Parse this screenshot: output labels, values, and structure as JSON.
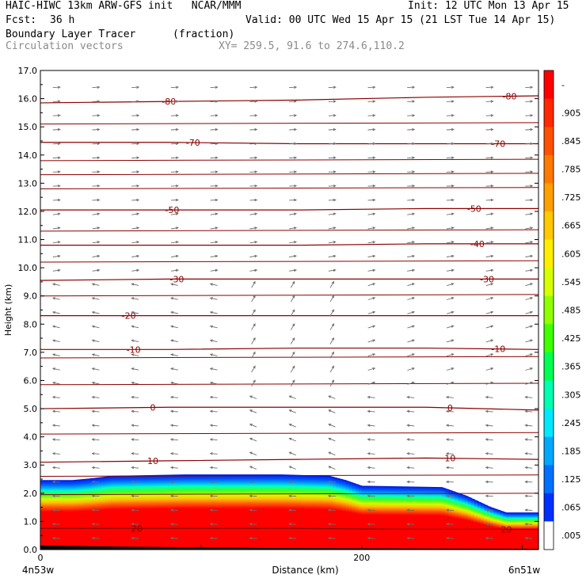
{
  "header": {
    "model_line": "HAIC-HIWC 13km ARW-GFS init   NCAR/MMM",
    "init_line": "Init: 12 UTC Mon 13 Apr 15",
    "fcst_label": "Fcst:",
    "fcst_value": "36 h",
    "valid_line": "Valid: 00 UTC Wed 15 Apr 15 (21 LST Tue 14 Apr 15)",
    "field_name": "Boundary Layer Tracer",
    "field_units": "(fraction)",
    "vector_name": "Circulation vectors",
    "xy_line": "XY= 259.5, 91.6 to 274.6,110.2"
  },
  "chart_data": {
    "type": "heatmap",
    "xlabel": "Distance (km)",
    "ylabel": "Height (km)",
    "xlim": [
      0,
      310
    ],
    "ylim": [
      0.0,
      17.0
    ],
    "x_ticks": [
      "0",
      "200"
    ],
    "x_endpoints": [
      "4n53w",
      "6n51w"
    ],
    "y_ticks": [
      "0.0",
      "1.0",
      "2.0",
      "3.0",
      "4.0",
      "5.0",
      "6.0",
      "7.0",
      "8.0",
      "9.0",
      "10.0",
      "11.0",
      "12.0",
      "13.0",
      "14.0",
      "15.0",
      "16.0",
      "17.0"
    ],
    "colorbar": {
      "labels": [
        "-",
        ".905",
        ".845",
        ".785",
        ".725",
        ".665",
        ".605",
        ".545",
        ".485",
        ".425",
        ".365",
        ".305",
        ".245",
        ".185",
        ".125",
        ".065",
        ".005"
      ],
      "colors": [
        "#ff0000",
        "#ff2800",
        "#ff5000",
        "#ff7800",
        "#ffa000",
        "#ffc800",
        "#ffee00",
        "#d8ff00",
        "#90ff00",
        "#40ff00",
        "#00ff50",
        "#00ffb0",
        "#00e8ff",
        "#00a8ff",
        "#0070ff",
        "#0030ff",
        "#ffffff"
      ]
    },
    "tracer_top_km": [
      [
        0,
        2.45
      ],
      [
        20,
        2.45
      ],
      [
        30,
        2.5
      ],
      [
        45,
        2.6
      ],
      [
        90,
        2.65
      ],
      [
        150,
        2.65
      ],
      [
        180,
        2.6
      ],
      [
        190,
        2.45
      ],
      [
        200,
        2.25
      ],
      [
        250,
        2.2
      ],
      [
        265,
        1.9
      ],
      [
        280,
        1.5
      ],
      [
        290,
        1.3
      ],
      [
        310,
        1.3
      ]
    ],
    "temperature_contours": [
      {
        "label": "20",
        "y": [
          0.75,
          0.75,
          0.75,
          0.72,
          0.72
        ]
      },
      {
        "label": "10",
        "y": [
          3.1,
          3.15,
          3.2,
          3.25,
          3.2
        ]
      },
      {
        "label": "0",
        "y": [
          5.0,
          5.05,
          5.05,
          5.05,
          4.95
        ]
      },
      {
        "label": "-10",
        "y": [
          7.1,
          7.1,
          7.15,
          7.15,
          7.1
        ]
      },
      {
        "label": "-20",
        "y": [
          8.3,
          8.3,
          8.3,
          8.3,
          8.3
        ]
      },
      {
        "label": "-30",
        "y": [
          9.55,
          9.6,
          9.6,
          9.6,
          9.6
        ]
      },
      {
        "label": "-40",
        "y": [
          10.8,
          10.8,
          10.8,
          10.85,
          10.85
        ]
      },
      {
        "label": "-50",
        "y": [
          12.05,
          12.05,
          12.05,
          12.1,
          12.1
        ]
      },
      {
        "label": "-70",
        "y": [
          14.45,
          14.45,
          14.4,
          14.4,
          14.4
        ]
      },
      {
        "label": "-80",
        "y": [
          15.85,
          15.9,
          15.95,
          16.05,
          16.1
        ]
      }
    ],
    "contour_x_km": [
      0,
      80,
      160,
      240,
      310
    ],
    "extra_contours_y": [
      1.95,
      2.6,
      4.1,
      5.85,
      6.8,
      9.0,
      10.2,
      11.3,
      12.8,
      13.3,
      13.8,
      15.1
    ]
  }
}
